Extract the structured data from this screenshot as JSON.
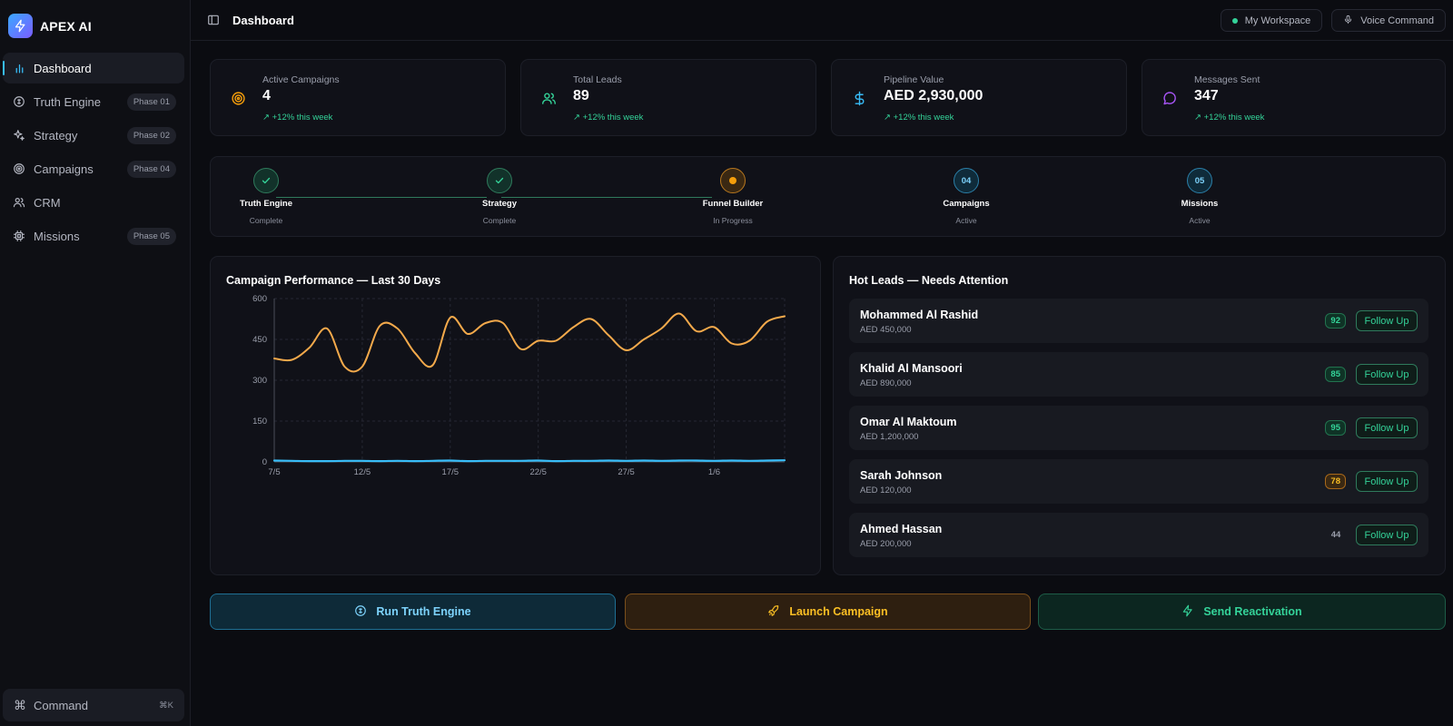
{
  "brand": {
    "name": "APEX AI"
  },
  "sidebar": {
    "items": [
      {
        "label": "Dashboard",
        "icon": "bar-chart-icon",
        "badge": ""
      },
      {
        "label": "Truth Engine",
        "icon": "compass-icon",
        "badge": "Phase 01"
      },
      {
        "label": "Strategy",
        "icon": "sparkles-icon",
        "badge": "Phase 02"
      },
      {
        "label": "Campaigns",
        "icon": "target-icon",
        "badge": "Phase 04"
      },
      {
        "label": "CRM",
        "icon": "users-icon",
        "badge": ""
      },
      {
        "label": "Missions",
        "icon": "cpu-icon",
        "badge": "Phase 05"
      }
    ],
    "command": {
      "label": "Command",
      "shortcut": "⌘K"
    }
  },
  "header": {
    "title": "Dashboard",
    "workspace": "My Workspace",
    "voice": "Voice Command"
  },
  "stats": [
    {
      "label": "Active Campaigns",
      "value": "4",
      "trend": "+12% this week",
      "icon": "target-icon",
      "color": "#f59e0b"
    },
    {
      "label": "Total Leads",
      "value": "89",
      "trend": "+12% this week",
      "icon": "users-icon",
      "color": "#34d399"
    },
    {
      "label": "Pipeline Value",
      "value": "AED 2,930,000",
      "trend": "+12% this week",
      "icon": "dollar-icon",
      "color": "#38bdf8"
    },
    {
      "label": "Messages Sent",
      "value": "347",
      "trend": "+12% this week",
      "icon": "message-icon",
      "color": "#a855f7"
    }
  ],
  "progress": [
    {
      "name": "Truth Engine",
      "status": "Complete",
      "state": "done",
      "mark": ""
    },
    {
      "name": "Strategy",
      "status": "Complete",
      "state": "done",
      "mark": ""
    },
    {
      "name": "Funnel Builder",
      "status": "In Progress",
      "state": "prog",
      "mark": ""
    },
    {
      "name": "Campaigns",
      "status": "Active",
      "state": "act",
      "mark": "04"
    },
    {
      "name": "Missions",
      "status": "Active",
      "state": "act",
      "mark": "05"
    }
  ],
  "chart": {
    "title": "Campaign Performance — Last 30 Days",
    "line_color": "#f3a94b",
    "base_color": "#38bdf8"
  },
  "chart_data": {
    "type": "line",
    "title": "Campaign Performance — Last 30 Days",
    "xlabel": "",
    "ylabel": "",
    "ylim": [
      0,
      600
    ],
    "yticks": [
      0,
      150,
      300,
      450,
      600
    ],
    "xticks": [
      "7/5",
      "12/5",
      "17/5",
      "22/5",
      "27/5",
      "1/6"
    ],
    "grid": true,
    "categories": [
      "7/5",
      "8/5",
      "9/5",
      "10/5",
      "11/5",
      "12/5",
      "13/5",
      "14/5",
      "15/5",
      "16/5",
      "17/5",
      "18/5",
      "19/5",
      "20/5",
      "21/5",
      "22/5",
      "23/5",
      "24/5",
      "25/5",
      "26/5",
      "27/5",
      "28/5",
      "29/5",
      "30/5",
      "31/5",
      "1/6",
      "2/6",
      "3/6",
      "4/6",
      "5/6"
    ],
    "series": [
      {
        "values": [
          380,
          375,
          420,
          490,
          350,
          350,
          500,
          490,
          400,
          355,
          530,
          470,
          510,
          510,
          415,
          445,
          445,
          495,
          525,
          465,
          410,
          450,
          490,
          545,
          480,
          495,
          435,
          445,
          515,
          535
        ]
      },
      {
        "values": [
          5,
          4,
          3,
          3,
          4,
          4,
          3,
          4,
          3,
          4,
          5,
          3,
          4,
          4,
          4,
          5,
          3,
          4,
          4,
          5,
          4,
          5,
          4,
          5,
          5,
          4,
          5,
          4,
          5,
          6
        ]
      }
    ]
  },
  "leads": {
    "title": "Hot Leads — Needs Attention",
    "button_label": "Follow Up",
    "items": [
      {
        "name": "Mohammed Al Rashid",
        "value": "AED 450,000",
        "score": "92",
        "tone": "green"
      },
      {
        "name": "Khalid Al Mansoori",
        "value": "AED 890,000",
        "score": "85",
        "tone": "green"
      },
      {
        "name": "Omar Al Maktoum",
        "value": "AED 1,200,000",
        "score": "95",
        "tone": "green"
      },
      {
        "name": "Sarah Johnson",
        "value": "AED 120,000",
        "score": "78",
        "tone": "amber"
      },
      {
        "name": "Ahmed Hassan",
        "value": "AED 200,000",
        "score": "44",
        "tone": "plain"
      }
    ]
  },
  "actions": [
    {
      "label": "Run Truth Engine",
      "icon": "compass-icon",
      "tone": "blue"
    },
    {
      "label": "Launch Campaign",
      "icon": "rocket-icon",
      "tone": "orange"
    },
    {
      "label": "Send Reactivation",
      "icon": "zap-icon",
      "tone": "green"
    }
  ]
}
